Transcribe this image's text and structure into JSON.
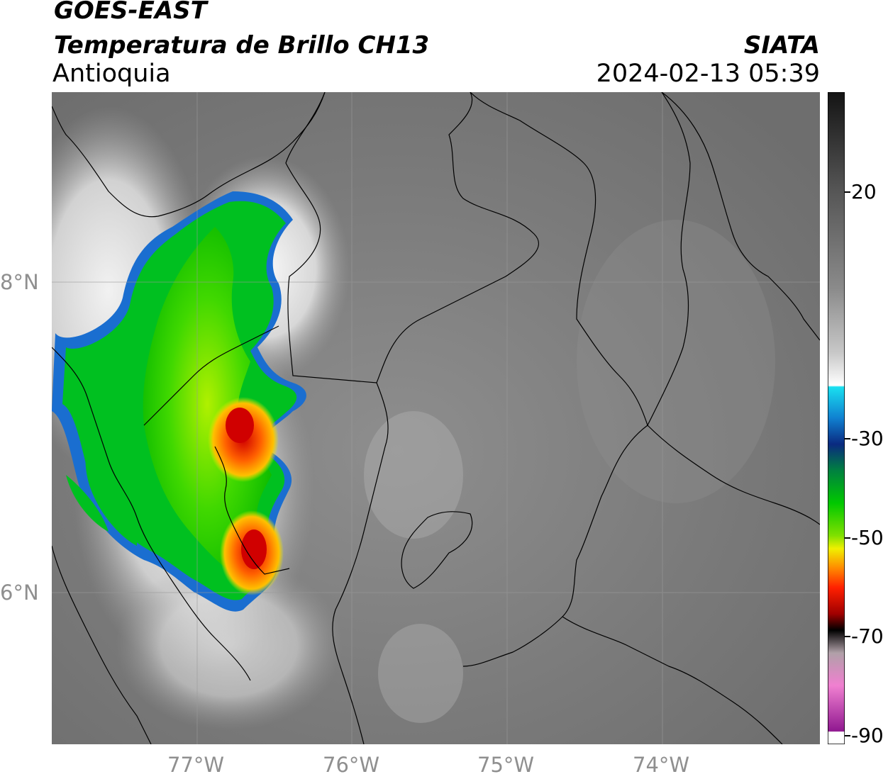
{
  "header": {
    "satellite": "GOES-EAST",
    "product": "Temperatura de Brillo CH13",
    "region": "Antioquia",
    "agency": "SIATA",
    "datetime": "2024-02-13 05:39"
  },
  "map": {
    "lat_labels": [
      "8°N",
      "6°N"
    ],
    "lon_labels": [
      "77°W",
      "76°W",
      "75°W",
      "74°W"
    ],
    "background_color": "#7b7b7b",
    "border_color": "#000000",
    "grid_color": "#9a9a9a"
  },
  "colorbar": {
    "labels": [
      "20",
      "-30",
      "-50",
      "-70",
      "-90"
    ],
    "colors": {
      "warm_top": "#141414",
      "warm_mid": "#8a8a8a",
      "white": "#ffffff",
      "cyan": "#19e0f0",
      "blue": "#0a2a80",
      "green": "#00c800",
      "yellow": "#f0f000",
      "orange": "#ff8a00",
      "red": "#e00000",
      "dark_red": "#600000",
      "black": "#000000",
      "pink": "#e070c0",
      "purple": "#901890"
    }
  }
}
